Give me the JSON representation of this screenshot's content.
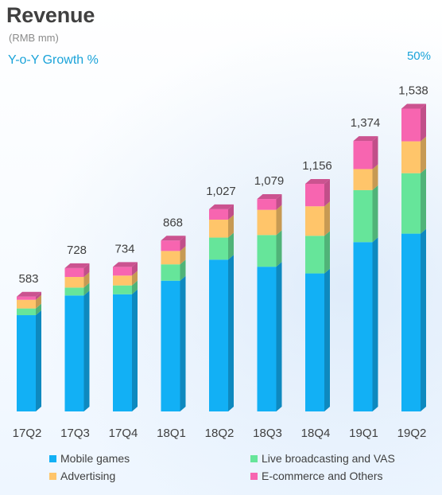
{
  "header": {
    "title": "Revenue",
    "subtitle": "(RMB mm)",
    "yoy_label": "Y-o-Y Growth %",
    "yoy_value": "50%"
  },
  "colors": {
    "mobile_games": "#12b0f5",
    "live_broadcasting": "#66e59a",
    "advertising": "#ffc56a",
    "ecommerce": "#f765b0",
    "text": "#404040",
    "accent": "#1aa3d9"
  },
  "chart_data": {
    "type": "bar",
    "stacked": true,
    "categories": [
      "17Q2",
      "17Q3",
      "17Q4",
      "18Q1",
      "18Q2",
      "18Q3",
      "18Q4",
      "19Q1",
      "19Q2"
    ],
    "totals": [
      "583",
      "728",
      "734",
      "868",
      "1,027",
      "1,079",
      "1,156",
      "1,374",
      "1,538"
    ],
    "series": [
      {
        "name": "Mobile games",
        "values": [
          489,
          589,
          595,
          664,
          771,
          735,
          701,
          860,
          903
        ]
      },
      {
        "name": "Live broadcasting and VAS",
        "values": [
          34,
          40,
          45,
          83,
          112,
          161,
          191,
          264,
          307
        ]
      },
      {
        "name": "Advertising",
        "values": [
          44,
          54,
          50,
          68,
          91,
          128,
          150,
          107,
          162
        ]
      },
      {
        "name": "E-commerce and Others",
        "values": [
          16,
          45,
          44,
          53,
          53,
          55,
          114,
          143,
          166
        ]
      }
    ],
    "legend_position": "bottom",
    "grid": false
  },
  "legend": [
    {
      "label": "Mobile games",
      "color": "#12b0f5"
    },
    {
      "label": "Live broadcasting and VAS",
      "color": "#66e59a"
    },
    {
      "label": "Advertising",
      "color": "#ffc56a"
    },
    {
      "label": "E-commerce and Others",
      "color": "#f765b0"
    }
  ]
}
